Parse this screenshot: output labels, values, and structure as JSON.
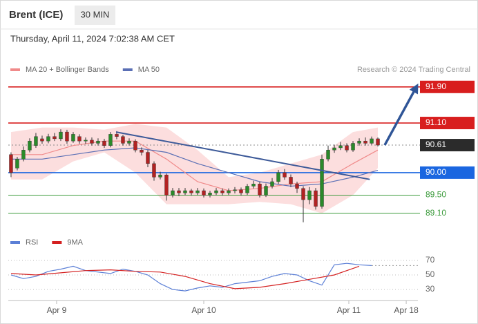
{
  "header": {
    "title": "Brent (ICE)",
    "interval": "30 MIN",
    "datetime": "Thursday, April 11, 2024 7:02:38 AM CET"
  },
  "chart_data": [
    {
      "type": "candlestick",
      "source": "Research © 2024 Trading Central",
      "up_color": "#2a8a2a",
      "down_color": "#b22222",
      "x": [
        0,
        1,
        2,
        3,
        4,
        5,
        6,
        7,
        8,
        9,
        10,
        11,
        12,
        13,
        14,
        15,
        16,
        17,
        18,
        19,
        20,
        21,
        22,
        23,
        24,
        25,
        26,
        27,
        28,
        29,
        30,
        31,
        32,
        33,
        34,
        35,
        36,
        37,
        38,
        39,
        40,
        41,
        42,
        43,
        44,
        45,
        46,
        47,
        48,
        49,
        50,
        51,
        52,
        53,
        54,
        55,
        56,
        57,
        58,
        59
      ],
      "open": [
        90.4,
        90.1,
        90.3,
        90.5,
        90.6,
        90.75,
        90.7,
        90.8,
        90.75,
        90.9,
        90.7,
        90.8,
        90.7,
        90.72,
        90.65,
        90.7,
        90.6,
        90.85,
        90.8,
        90.65,
        90.7,
        90.5,
        90.45,
        90.2,
        89.9,
        89.95,
        89.5,
        89.6,
        89.55,
        89.6,
        89.55,
        89.6,
        89.5,
        89.55,
        89.6,
        89.55,
        89.6,
        89.62,
        89.55,
        89.7,
        89.75,
        89.5,
        89.7,
        89.8,
        90.0,
        89.9,
        89.75,
        89.65,
        89.4,
        89.6,
        89.25,
        90.3,
        90.5,
        90.55,
        90.6,
        90.5,
        90.65,
        90.7,
        90.65,
        90.75
      ],
      "high": [
        90.45,
        90.35,
        90.58,
        90.76,
        90.88,
        90.82,
        90.86,
        90.88,
        90.96,
        90.95,
        90.9,
        90.85,
        90.78,
        90.78,
        90.76,
        90.75,
        90.9,
        90.92,
        90.84,
        90.76,
        90.74,
        90.56,
        90.5,
        90.25,
        90.02,
        89.98,
        89.66,
        89.66,
        89.66,
        89.64,
        89.66,
        89.65,
        89.6,
        89.66,
        89.65,
        89.65,
        89.68,
        89.67,
        89.75,
        89.82,
        89.8,
        89.76,
        89.88,
        90.06,
        90.08,
        89.96,
        89.8,
        89.7,
        89.68,
        89.66,
        90.4,
        90.6,
        90.62,
        90.68,
        90.65,
        90.7,
        90.76,
        90.78,
        90.8,
        90.78
      ],
      "low": [
        89.9,
        90.05,
        90.25,
        90.45,
        90.55,
        90.64,
        90.65,
        90.7,
        90.7,
        90.64,
        90.66,
        90.64,
        90.64,
        90.6,
        90.6,
        90.55,
        90.56,
        90.74,
        90.6,
        90.6,
        90.45,
        90.38,
        90.12,
        89.82,
        89.85,
        89.38,
        89.45,
        89.48,
        89.5,
        89.49,
        89.5,
        89.45,
        89.45,
        89.5,
        89.49,
        89.5,
        89.54,
        89.49,
        89.5,
        89.65,
        89.45,
        89.46,
        89.65,
        89.75,
        89.84,
        89.68,
        89.55,
        88.9,
        89.3,
        89.18,
        89.2,
        90.25,
        90.44,
        90.5,
        90.45,
        90.46,
        90.6,
        90.6,
        90.62,
        90.58
      ],
      "close": [
        90.0,
        90.3,
        90.5,
        90.7,
        90.8,
        90.7,
        90.8,
        90.75,
        90.9,
        90.7,
        90.85,
        90.7,
        90.72,
        90.65,
        90.7,
        90.6,
        90.85,
        90.8,
        90.65,
        90.7,
        90.5,
        90.45,
        90.2,
        89.9,
        89.95,
        89.5,
        89.6,
        89.55,
        89.6,
        89.55,
        89.6,
        89.5,
        89.55,
        89.6,
        89.55,
        89.6,
        89.62,
        89.55,
        89.7,
        89.75,
        89.5,
        89.7,
        89.8,
        90.0,
        89.9,
        89.75,
        89.65,
        89.4,
        89.6,
        89.25,
        90.3,
        90.5,
        90.55,
        90.6,
        90.5,
        90.65,
        90.7,
        90.65,
        90.75,
        90.61
      ],
      "series": [
        {
          "name": "MA 20 + Bollinger Bands",
          "color": "#f08a8a",
          "band_color": "#fbd3d3",
          "x": [
            0,
            5,
            10,
            15,
            20,
            25,
            30,
            35,
            40,
            45,
            50,
            55,
            59
          ],
          "values": [
            90.4,
            90.4,
            90.6,
            90.7,
            90.7,
            90.3,
            89.8,
            89.6,
            89.65,
            89.75,
            89.8,
            90.2,
            90.5
          ],
          "upper": [
            90.9,
            91.0,
            91.0,
            90.95,
            91.08,
            91.0,
            90.5,
            89.9,
            90.0,
            90.2,
            90.4,
            90.9,
            91.0
          ],
          "lower": [
            89.85,
            89.85,
            90.25,
            90.45,
            90.0,
            89.3,
            89.3,
            89.3,
            89.35,
            89.3,
            89.1,
            89.5,
            90.1
          ]
        },
        {
          "name": "MA 50",
          "color": "#5a6fb5",
          "x": [
            0,
            5,
            10,
            15,
            20,
            25,
            30,
            35,
            40,
            45,
            50,
            55,
            59
          ],
          "values": [
            90.3,
            90.3,
            90.4,
            90.5,
            90.55,
            90.45,
            90.2,
            90.0,
            89.8,
            89.7,
            89.75,
            89.9,
            90.05
          ]
        }
      ],
      "trendline": {
        "color": "#3d5a99",
        "x": [
          16.9,
          57.7
        ],
        "values": [
          90.9,
          89.85
        ]
      },
      "forecast": {
        "color": "#2f5597",
        "x": [
          60.1,
          65.2
        ],
        "values": [
          90.61,
          91.9
        ]
      },
      "levels": [
        {
          "value": 91.9,
          "label": "91.90",
          "color": "#d81e1e",
          "style": "box"
        },
        {
          "value": 91.1,
          "label": "91.10",
          "color": "#d81e1e",
          "style": "box"
        },
        {
          "value": 90.61,
          "label": "90.61",
          "color": "#2b2b2b",
          "style": "box-dotted"
        },
        {
          "value": 90.0,
          "label": "90.00",
          "color": "#1a66e0",
          "style": "box"
        },
        {
          "value": 89.5,
          "label": "89.50",
          "color": "#3a9a3a",
          "style": "text"
        },
        {
          "value": 89.1,
          "label": "89.10",
          "color": "#3a9a3a",
          "style": "text"
        }
      ],
      "xlim": [
        -0.44,
        65.44
      ],
      "ylim": [
        88.85,
        92.05
      ]
    },
    {
      "type": "line",
      "series": [
        {
          "name": "RSI",
          "color": "#5b7fd6",
          "x": [
            0,
            2,
            4,
            6,
            8,
            10,
            12,
            14,
            16,
            18,
            20,
            22,
            24,
            26,
            28,
            30,
            32,
            34,
            36,
            38,
            40,
            42,
            44,
            46,
            48,
            50,
            52,
            54,
            56,
            58
          ],
          "values": [
            50,
            45,
            48,
            55,
            58,
            62,
            56,
            54,
            52,
            58,
            55,
            50,
            38,
            30,
            28,
            32,
            35,
            33,
            38,
            40,
            42,
            48,
            52,
            50,
            42,
            36,
            64,
            66,
            64,
            63
          ]
        },
        {
          "name": "9MA",
          "color": "#d42020",
          "x": [
            0,
            4,
            8,
            12,
            16,
            20,
            24,
            28,
            32,
            36,
            40,
            44,
            48,
            52,
            56
          ],
          "values": [
            52,
            50,
            53,
            56,
            57,
            55,
            54,
            48,
            38,
            31,
            33,
            38,
            44,
            50,
            62
          ]
        }
      ],
      "xlim": [
        -0.44,
        65.44
      ],
      "xticks": [
        {
          "value": 7.33,
          "label": "Apr 9"
        },
        {
          "value": 31,
          "label": "Apr 10"
        },
        {
          "value": 54.33,
          "label": "Apr 11"
        },
        {
          "value": 63.56,
          "label": "Apr 18"
        }
      ],
      "ylim": [
        20,
        80
      ],
      "yticks": [
        30,
        50,
        70
      ]
    }
  ]
}
